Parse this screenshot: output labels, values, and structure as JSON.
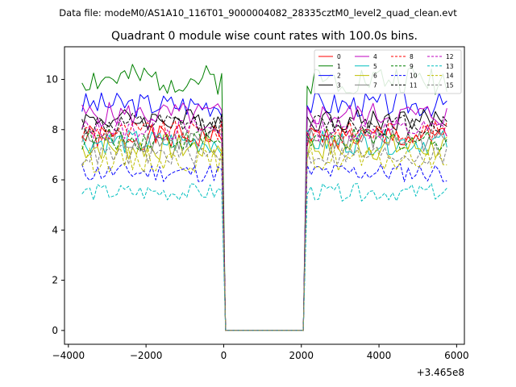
{
  "suptitle": "Data file: modeM0/AS1A10_116T01_9000004082_28335cztM0_level2_quad_clean.evt",
  "chart_data": {
    "type": "line",
    "title": "Quadrant 0 module wise count rates with 100.0s bins.",
    "xlabel": "",
    "ylabel": "",
    "x_offset_label": "+3.465e8",
    "xlim": [
      -4100,
      6200
    ],
    "ylim": [
      -0.55,
      11.3
    ],
    "x_ticks": [
      -4000,
      -2000,
      0,
      2000,
      4000,
      6000
    ],
    "x_tick_labels": [
      "−4000",
      "−2000",
      "0",
      "2000",
      "4000",
      "6000"
    ],
    "y_ticks": [
      0,
      2,
      4,
      6,
      8,
      10
    ],
    "y_tick_labels": [
      "0",
      "2",
      "4",
      "6",
      "8",
      "10"
    ],
    "legend_position": "top-right",
    "sampling": {
      "bin_width": 100,
      "segment_1_start": -3650,
      "segment_1_end": -50,
      "gap_start": 50,
      "gap_end": 2050,
      "gap_value": 0,
      "segment_2_start": 2150,
      "segment_2_end": 5750
    },
    "series": [
      {
        "name": "0",
        "color": "#ff0000",
        "style": "solid",
        "mean": 7.7,
        "spread": 0.5,
        "seed": 1
      },
      {
        "name": "1",
        "color": "#008000",
        "style": "solid",
        "mean": 10.0,
        "spread": 0.6,
        "seed": 2
      },
      {
        "name": "2",
        "color": "#0000ff",
        "style": "solid",
        "mean": 9.0,
        "spread": 0.5,
        "seed": 3
      },
      {
        "name": "3",
        "color": "#000000",
        "style": "solid",
        "mean": 8.4,
        "spread": 0.45,
        "seed": 4
      },
      {
        "name": "4",
        "color": "#bf00bf",
        "style": "solid",
        "mean": 8.6,
        "spread": 0.5,
        "seed": 5
      },
      {
        "name": "5",
        "color": "#00bfbf",
        "style": "solid",
        "mean": 7.5,
        "spread": 0.5,
        "seed": 6
      },
      {
        "name": "6",
        "color": "#bfbf00",
        "style": "solid",
        "mean": 7.3,
        "spread": 0.55,
        "seed": 7
      },
      {
        "name": "7",
        "color": "#808080",
        "style": "solid",
        "mean": 7.6,
        "spread": 0.5,
        "seed": 8
      },
      {
        "name": "8",
        "color": "#ff0000",
        "style": "dashed",
        "mean": 7.9,
        "spread": 0.45,
        "seed": 9
      },
      {
        "name": "9",
        "color": "#008000",
        "style": "dashed",
        "mean": 7.6,
        "spread": 0.45,
        "seed": 10
      },
      {
        "name": "10",
        "color": "#0000ff",
        "style": "dashed",
        "mean": 6.3,
        "spread": 0.4,
        "seed": 11
      },
      {
        "name": "11",
        "color": "#000000",
        "style": "dashed",
        "mean": 8.2,
        "spread": 0.45,
        "seed": 12
      },
      {
        "name": "12",
        "color": "#bf00bf",
        "style": "dashed",
        "mean": 8.0,
        "spread": 0.45,
        "seed": 13
      },
      {
        "name": "13",
        "color": "#00bfbf",
        "style": "dashed",
        "mean": 5.5,
        "spread": 0.35,
        "seed": 14
      },
      {
        "name": "14",
        "color": "#bfbf00",
        "style": "dashed",
        "mean": 6.8,
        "spread": 0.5,
        "seed": 15
      },
      {
        "name": "15",
        "color": "#808080",
        "style": "dashed",
        "mean": 7.0,
        "spread": 0.45,
        "seed": 16
      }
    ]
  }
}
